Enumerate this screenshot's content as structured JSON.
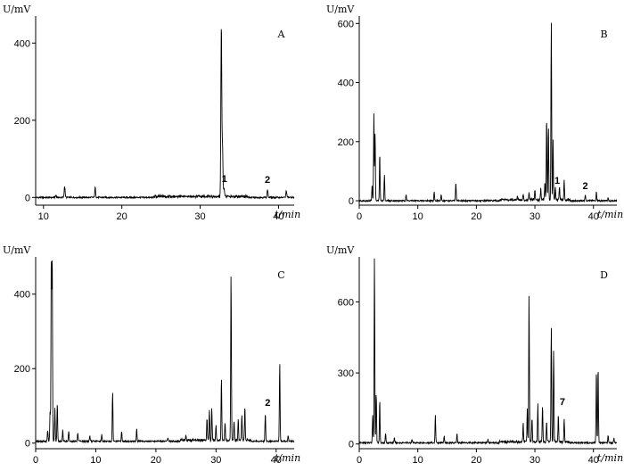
{
  "chart_data": [
    {
      "type": "line",
      "panel_letter": "A",
      "ylabel": "U/mV",
      "xlabel": "t/min",
      "xlim": [
        9,
        42
      ],
      "ylim": [
        -20,
        470
      ],
      "xticks": [
        10,
        20,
        30,
        40
      ],
      "yticks": [
        0,
        200,
        400
      ],
      "baseline": 0,
      "peaks": [
        [
          11.6,
          6
        ],
        [
          12.7,
          30
        ],
        [
          16.6,
          26
        ],
        [
          29.8,
          3
        ],
        [
          32.7,
          445
        ],
        [
          32.85,
          130
        ],
        [
          33.05,
          22
        ],
        [
          38.6,
          20
        ],
        [
          41.0,
          18
        ]
      ],
      "annotations": [
        {
          "text": "1",
          "x": 33.1,
          "y": 40
        },
        {
          "text": "2",
          "x": 38.6,
          "y": 38
        }
      ]
    },
    {
      "type": "line",
      "panel_letter": "B",
      "ylabel": "U/mV",
      "xlabel": "t/min",
      "xlim": [
        0,
        44
      ],
      "ylim": [
        -15,
        625
      ],
      "xticks": [
        0,
        10,
        20,
        30,
        40
      ],
      "yticks": [
        0,
        200,
        400,
        600
      ],
      "baseline": 0,
      "peaks": [
        [
          2.2,
          50
        ],
        [
          2.5,
          295
        ],
        [
          2.7,
          230
        ],
        [
          3.5,
          160
        ],
        [
          4.3,
          85
        ],
        [
          8.0,
          22
        ],
        [
          12.8,
          30
        ],
        [
          14.0,
          18
        ],
        [
          16.5,
          60
        ],
        [
          27.0,
          12
        ],
        [
          28.0,
          20
        ],
        [
          29.0,
          25
        ],
        [
          30.0,
          30
        ],
        [
          31.0,
          40
        ],
        [
          31.7,
          60
        ],
        [
          32.0,
          285
        ],
        [
          32.3,
          250
        ],
        [
          32.8,
          600
        ],
        [
          33.1,
          200
        ],
        [
          33.5,
          40
        ],
        [
          34.2,
          45
        ],
        [
          35.0,
          65
        ],
        [
          38.6,
          20
        ],
        [
          40.5,
          30
        ],
        [
          42.5,
          8
        ]
      ],
      "annotations": [
        {
          "text": "1",
          "x": 33.8,
          "y": 58
        },
        {
          "text": "2",
          "x": 38.6,
          "y": 40
        }
      ]
    },
    {
      "type": "line",
      "panel_letter": "C",
      "ylabel": "U/mV",
      "xlabel": "t/min",
      "xlim": [
        0,
        43
      ],
      "ylim": [
        -15,
        500
      ],
      "xticks": [
        0,
        10,
        20,
        30,
        40
      ],
      "yticks": [
        0,
        200,
        400
      ],
      "baseline": 5,
      "peaks": [
        [
          2.0,
          30
        ],
        [
          2.4,
          80
        ],
        [
          2.6,
          490
        ],
        [
          2.75,
          490
        ],
        [
          3.2,
          90
        ],
        [
          3.6,
          100
        ],
        [
          4.5,
          30
        ],
        [
          5.5,
          25
        ],
        [
          7.0,
          20
        ],
        [
          9.0,
          15
        ],
        [
          11.0,
          18
        ],
        [
          12.8,
          130
        ],
        [
          14.3,
          25
        ],
        [
          16.8,
          35
        ],
        [
          22.0,
          10
        ],
        [
          25.0,
          12
        ],
        [
          28.5,
          60
        ],
        [
          28.9,
          80
        ],
        [
          29.3,
          90
        ],
        [
          30.0,
          40
        ],
        [
          30.9,
          170
        ],
        [
          31.5,
          50
        ],
        [
          32.5,
          450
        ],
        [
          33.0,
          50
        ],
        [
          33.7,
          55
        ],
        [
          34.3,
          65
        ],
        [
          34.8,
          90
        ],
        [
          38.2,
          75
        ],
        [
          40.6,
          210
        ],
        [
          42.0,
          15
        ]
      ],
      "annotations": [
        {
          "text": "2",
          "x": 38.6,
          "y": 100
        }
      ]
    },
    {
      "type": "line",
      "panel_letter": "D",
      "ylabel": "U/mV",
      "xlabel": "t/min",
      "xlim": [
        0,
        44
      ],
      "ylim": [
        -20,
        790
      ],
      "xticks": [
        0,
        10,
        20,
        30,
        40
      ],
      "yticks": [
        0,
        300,
        600
      ],
      "baseline": 5,
      "peaks": [
        [
          2.3,
          120
        ],
        [
          2.6,
          790
        ],
        [
          2.9,
          210
        ],
        [
          3.5,
          180
        ],
        [
          4.5,
          40
        ],
        [
          6.0,
          20
        ],
        [
          9.0,
          15
        ],
        [
          13.0,
          115
        ],
        [
          14.5,
          30
        ],
        [
          16.7,
          40
        ],
        [
          22.0,
          15
        ],
        [
          28.0,
          80
        ],
        [
          28.7,
          140
        ],
        [
          29.0,
          625
        ],
        [
          29.5,
          100
        ],
        [
          30.5,
          160
        ],
        [
          31.3,
          155
        ],
        [
          32.0,
          90
        ],
        [
          32.8,
          480
        ],
        [
          33.2,
          380
        ],
        [
          34.0,
          120
        ],
        [
          35.0,
          95
        ],
        [
          40.5,
          310
        ],
        [
          40.8,
          320
        ],
        [
          42.5,
          30
        ],
        [
          43.5,
          20
        ]
      ],
      "annotations": [
        {
          "text": "7",
          "x": 34.7,
          "y": 165
        }
      ]
    }
  ]
}
